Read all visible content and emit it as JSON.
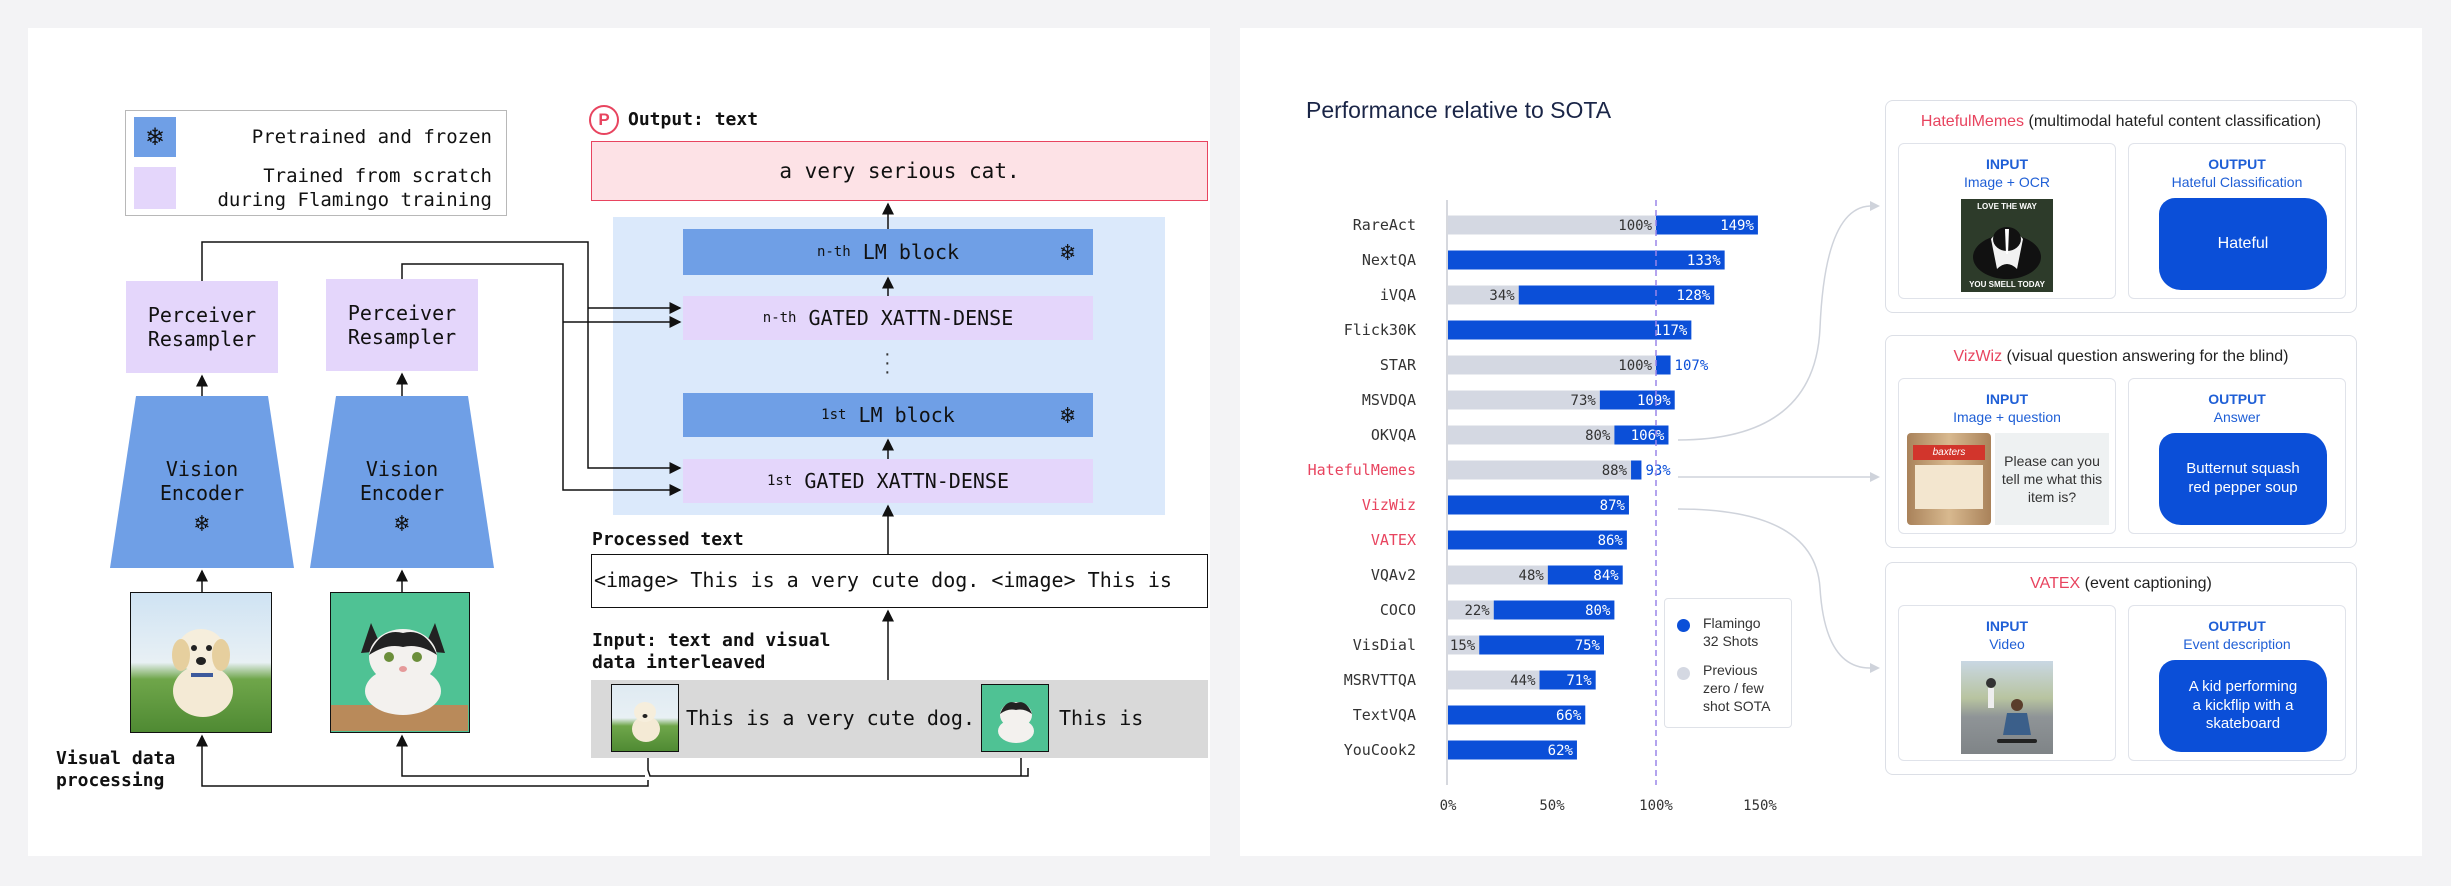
{
  "diagram": {
    "legend": {
      "frozen": "Pretrained and frozen",
      "scratch_line1": "Trained from scratch",
      "scratch_line2": "during Flamingo training"
    },
    "output_label": "Output: text",
    "output_text": "a very serious cat.",
    "lm_top": {
      "sup": "n-th",
      "label": "LM block"
    },
    "gated_top": {
      "sup": "n-th",
      "label": "GATED XATTN-DENSE"
    },
    "lm_bottom": {
      "sup": "1st",
      "label": "LM block"
    },
    "gated_bottom": {
      "sup": "1st",
      "label": "GATED XATTN-DENSE"
    },
    "perceiver": [
      "Perceiver",
      "Resampler"
    ],
    "vision_encoder": [
      "Vision",
      "Encoder"
    ],
    "processed_label": "Processed text",
    "processed_text": "<image> This is a very cute dog. <image> This is",
    "input_label_line1": "Input: text and visual",
    "input_label_line2": "data interleaved",
    "input_text1": "This is a very cute dog.",
    "input_text2": "This is",
    "visual_label_line1": "Visual data",
    "visual_label_line2": "processing",
    "colors": {
      "lm_block": "#6f9fe6",
      "gated": "#e4d6fb",
      "lm_area": "#dbe9fb",
      "output": "#fde2e6"
    }
  },
  "performance": {
    "title": "Performance relative to SOTA",
    "legend": {
      "flamingo_line1": "Flamingo",
      "flamingo_line2": "32 Shots",
      "prev_line1": "Previous",
      "prev_line2": "zero / few",
      "prev_line3": "shot SOTA"
    },
    "highlighted_color": "#e8445f",
    "cards": [
      {
        "name": "HatefulMemes",
        "desc": " (multimodal hateful content classification)",
        "input_title": "INPUT",
        "input_sub": "Image + OCR",
        "output_title": "OUTPUT",
        "output_sub": "Hateful Classification",
        "answer": "Hateful",
        "meme_top": "LOVE THE WAY",
        "meme_bottom": "YOU SMELL TODAY"
      },
      {
        "name": "VizWiz",
        "desc": " (visual question answering for the blind)",
        "input_title": "INPUT",
        "input_sub": "Image + question",
        "output_title": "OUTPUT",
        "output_sub": "Answer",
        "question": "Please can you tell me what this item is?",
        "answer": "Butternut squash red pepper soup",
        "can_label": "baxters"
      },
      {
        "name": "VATEX",
        "desc": " (event captioning)",
        "input_title": "INPUT",
        "input_sub": "Video",
        "output_title": "OUTPUT",
        "output_sub": "Event description",
        "answer": "A kid performing a kickflip with a skateboard"
      }
    ]
  },
  "chart_data": {
    "type": "bar",
    "title": "Performance relative to SOTA",
    "categories": [
      "RareAct",
      "NextQA",
      "iVQA",
      "Flick30K",
      "STAR",
      "MSVDQA",
      "OKVQA",
      "HatefulMemes",
      "VizWiz",
      "VATEX",
      "VQAv2",
      "COCO",
      "VisDial",
      "MSRVTTQA",
      "TextVQA",
      "YouCook2"
    ],
    "highlighted": [
      "HatefulMemes",
      "VizWiz",
      "VATEX"
    ],
    "series": [
      {
        "name": "Flamingo 32 Shots",
        "values": [
          149,
          133,
          128,
          117,
          107,
          109,
          106,
          93,
          87,
          86,
          84,
          80,
          75,
          71,
          66,
          62
        ],
        "color": "#0b4fd8"
      },
      {
        "name": "Previous zero / few shot SOTA",
        "values": [
          100,
          null,
          34,
          null,
          100,
          73,
          80,
          88,
          null,
          null,
          48,
          22,
          15,
          44,
          null,
          null
        ],
        "color": "#d4d8e2"
      }
    ],
    "xticks": [
      "0%",
      "50%",
      "100%",
      "150%"
    ],
    "xlim": [
      0,
      165
    ],
    "reference_line": 100
  }
}
